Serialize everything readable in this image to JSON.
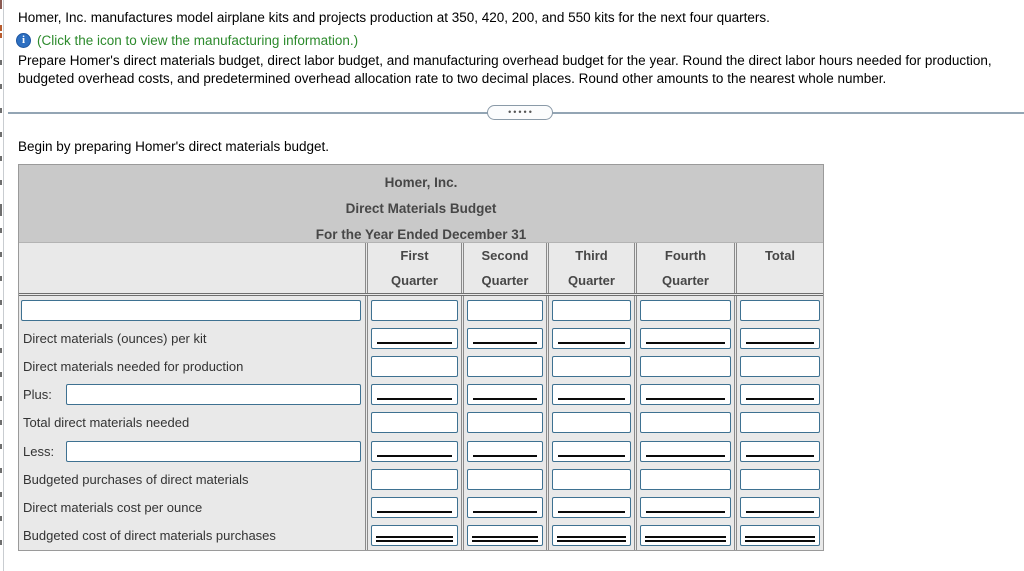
{
  "content": {
    "problem_statement": "Homer, Inc. manufactures model airplane kits and projects production at 350, 420, 200, and 550 kits for the next four quarters.",
    "info_icon": "info-icon",
    "info_link_label": "(Click the icon to view the manufacturing information.)",
    "instructions_line1": "Prepare Homer's direct materials budget, direct labor budget, and manufacturing overhead budget for the year. Round the direct labor hours needed for production,",
    "instructions_line2": "budgeted overhead costs, and predetermined overhead allocation rate to two decimal places. Round other amounts to the nearest whole number.",
    "divider_dots": "•••••",
    "prompt": "Begin by preparing Homer's direct materials budget."
  },
  "table": {
    "title_lines": [
      "Homer, Inc.",
      "Direct Materials Budget",
      "For the Year Ended December 31"
    ],
    "col_headers": [
      {
        "id": "first-quarter",
        "line1": "First",
        "line2": "Quarter"
      },
      {
        "id": "second-quarter",
        "line1": "Second",
        "line2": "Quarter"
      },
      {
        "id": "third-quarter",
        "line1": "Third",
        "line2": "Quarter"
      },
      {
        "id": "fourth-quarter",
        "line1": "Fourth",
        "line2": "Quarter"
      },
      {
        "id": "total",
        "line1": "",
        "line2": "Total"
      }
    ],
    "rows": [
      {
        "kind": "wide-input",
        "label": "",
        "input_value": "",
        "cell_style": "plain",
        "values": [
          "",
          "",
          "",
          "",
          ""
        ]
      },
      {
        "kind": "label",
        "label": "Direct materials (ounces) per kit",
        "cell_style": "underline",
        "values": [
          "",
          "",
          "",
          "",
          ""
        ]
      },
      {
        "kind": "label",
        "label": "Direct materials needed for production",
        "cell_style": "plain",
        "values": [
          "",
          "",
          "",
          "",
          ""
        ]
      },
      {
        "kind": "prefix-input",
        "label": "Plus:",
        "input_value": "",
        "cell_style": "underline",
        "values": [
          "",
          "",
          "",
          "",
          ""
        ]
      },
      {
        "kind": "label",
        "label": "Total direct materials needed",
        "cell_style": "plain",
        "values": [
          "",
          "",
          "",
          "",
          ""
        ]
      },
      {
        "kind": "prefix-input",
        "label": "Less:",
        "input_value": "",
        "cell_style": "underline",
        "values": [
          "",
          "",
          "",
          "",
          ""
        ]
      },
      {
        "kind": "label",
        "label": "Budgeted purchases of direct materials",
        "cell_style": "plain",
        "values": [
          "",
          "",
          "",
          "",
          ""
        ]
      },
      {
        "kind": "label",
        "label": "Direct materials cost per ounce",
        "cell_style": "underline",
        "values": [
          "",
          "",
          "",
          "",
          ""
        ]
      },
      {
        "kind": "label",
        "label": "Budgeted cost of direct materials purchases",
        "cell_style": "double-underline",
        "values": [
          "",
          "",
          "",
          "",
          ""
        ]
      }
    ]
  },
  "colors": {
    "input_border_blue": "#3E7191",
    "link_green": "#2C8A2C",
    "info_icon_blue": "#2D6FC1",
    "title_band_bg": "#C9C9C9",
    "table_bg": "#E9E9E9",
    "column_separator": "#8A8A8A",
    "divider_line": "#93A5B4"
  }
}
